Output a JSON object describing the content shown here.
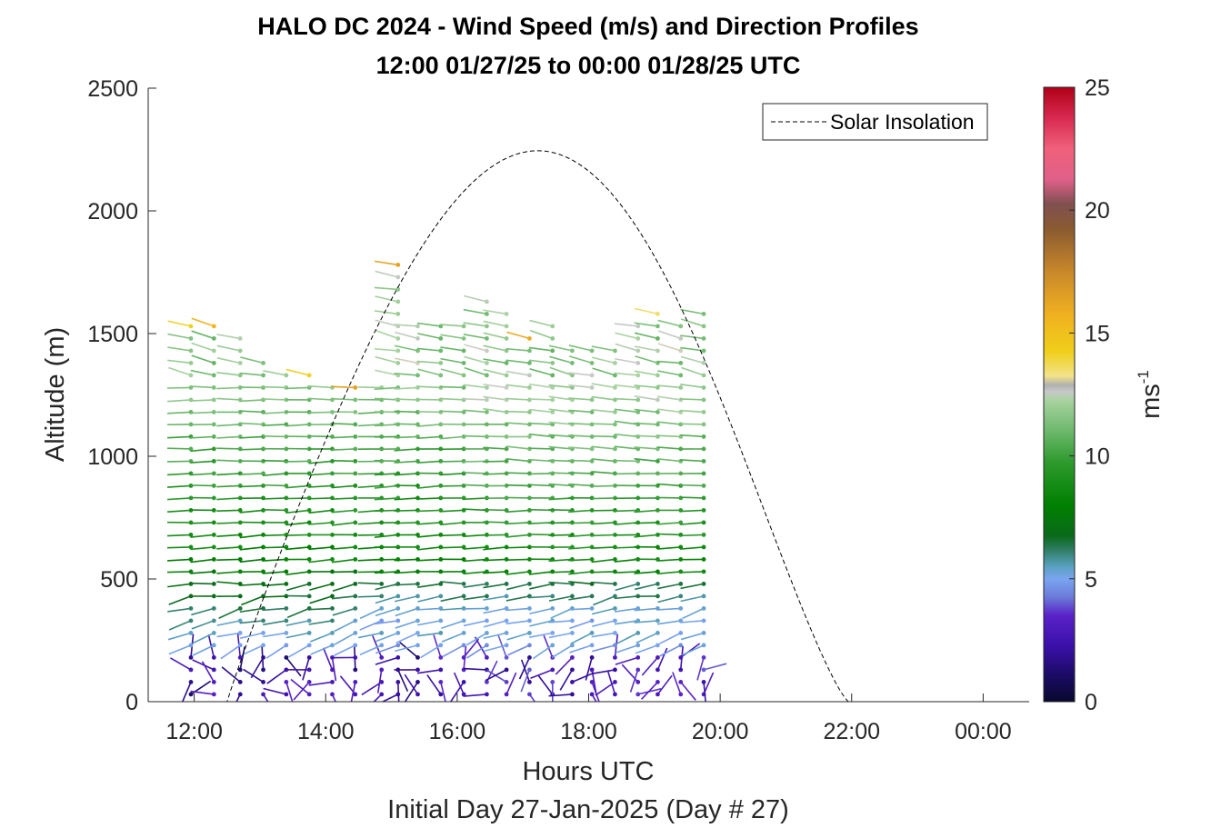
{
  "chart_data": {
    "type": "wind-barb-profile",
    "title": "HALO DC 2024 - Wind Speed (m/s) and Direction Profiles",
    "subtitle": "12:00 01/27/25 to 00:00 01/28/25  UTC",
    "xlabel": "Hours UTC",
    "xlabel2": "Initial Day 27-Jan-2025 (Day # 27)",
    "ylabel": "Altitude (m)",
    "xlim": [
      11.3,
      24.7
    ],
    "ylim": [
      0,
      2500
    ],
    "x_ticks": [
      12,
      14,
      16,
      18,
      20,
      22,
      24
    ],
    "x_tick_labels": [
      "12:00",
      "14:00",
      "16:00",
      "18:00",
      "20:00",
      "22:00",
      "00:00"
    ],
    "y_ticks": [
      0,
      500,
      1000,
      1500,
      2000,
      2500
    ],
    "y_tick_labels": [
      "0",
      "500",
      "1000",
      "1500",
      "2000",
      "2500"
    ],
    "colorbar": {
      "label": "ms",
      "label_exponent": "-1",
      "range": [
        0,
        25
      ],
      "ticks": [
        0,
        5,
        10,
        15,
        20,
        25
      ],
      "tick_labels": [
        "0",
        "5",
        "10",
        "15",
        "20",
        "25"
      ]
    },
    "legend": {
      "entries": [
        "Solar Insolation"
      ],
      "location": "top-right"
    },
    "solar_insolation": {
      "line_style": "dashed",
      "sunrise_hour": 12.5,
      "sunset_hour": 21.95,
      "peak_hour": 17.2,
      "peak_altitude": 2245
    },
    "profiles": {
      "hours": [
        11.95,
        12.3,
        12.7,
        13.05,
        13.4,
        13.75,
        14.1,
        14.45,
        14.85,
        15.1,
        15.4,
        15.75,
        16.1,
        16.45,
        16.75,
        17.1,
        17.45,
        17.75,
        18.05,
        18.4,
        18.75,
        19.05,
        19.4,
        19.75
      ],
      "top_altitude_m": [
        1530,
        1530,
        1510,
        1420,
        1340,
        1330,
        1300,
        1280,
        1300,
        1780,
        1560,
        1570,
        1570,
        1650,
        1590,
        1480,
        1550,
        1450,
        1470,
        1460,
        1550,
        1580,
        1540,
        1620
      ],
      "bottom_altitude_m": 30,
      "level_spacing_m": 50,
      "wind_speed_ms": {
        "0-200 m": "1-3",
        "200-500 m": "4-6",
        "500-1300 m": "7-11",
        "above 1300 m": "11-16"
      },
      "wind_direction": {
        "0-200 m": "variable",
        "200-500 m": "westerly",
        "500-1500 m": "west-northwesterly"
      }
    }
  }
}
